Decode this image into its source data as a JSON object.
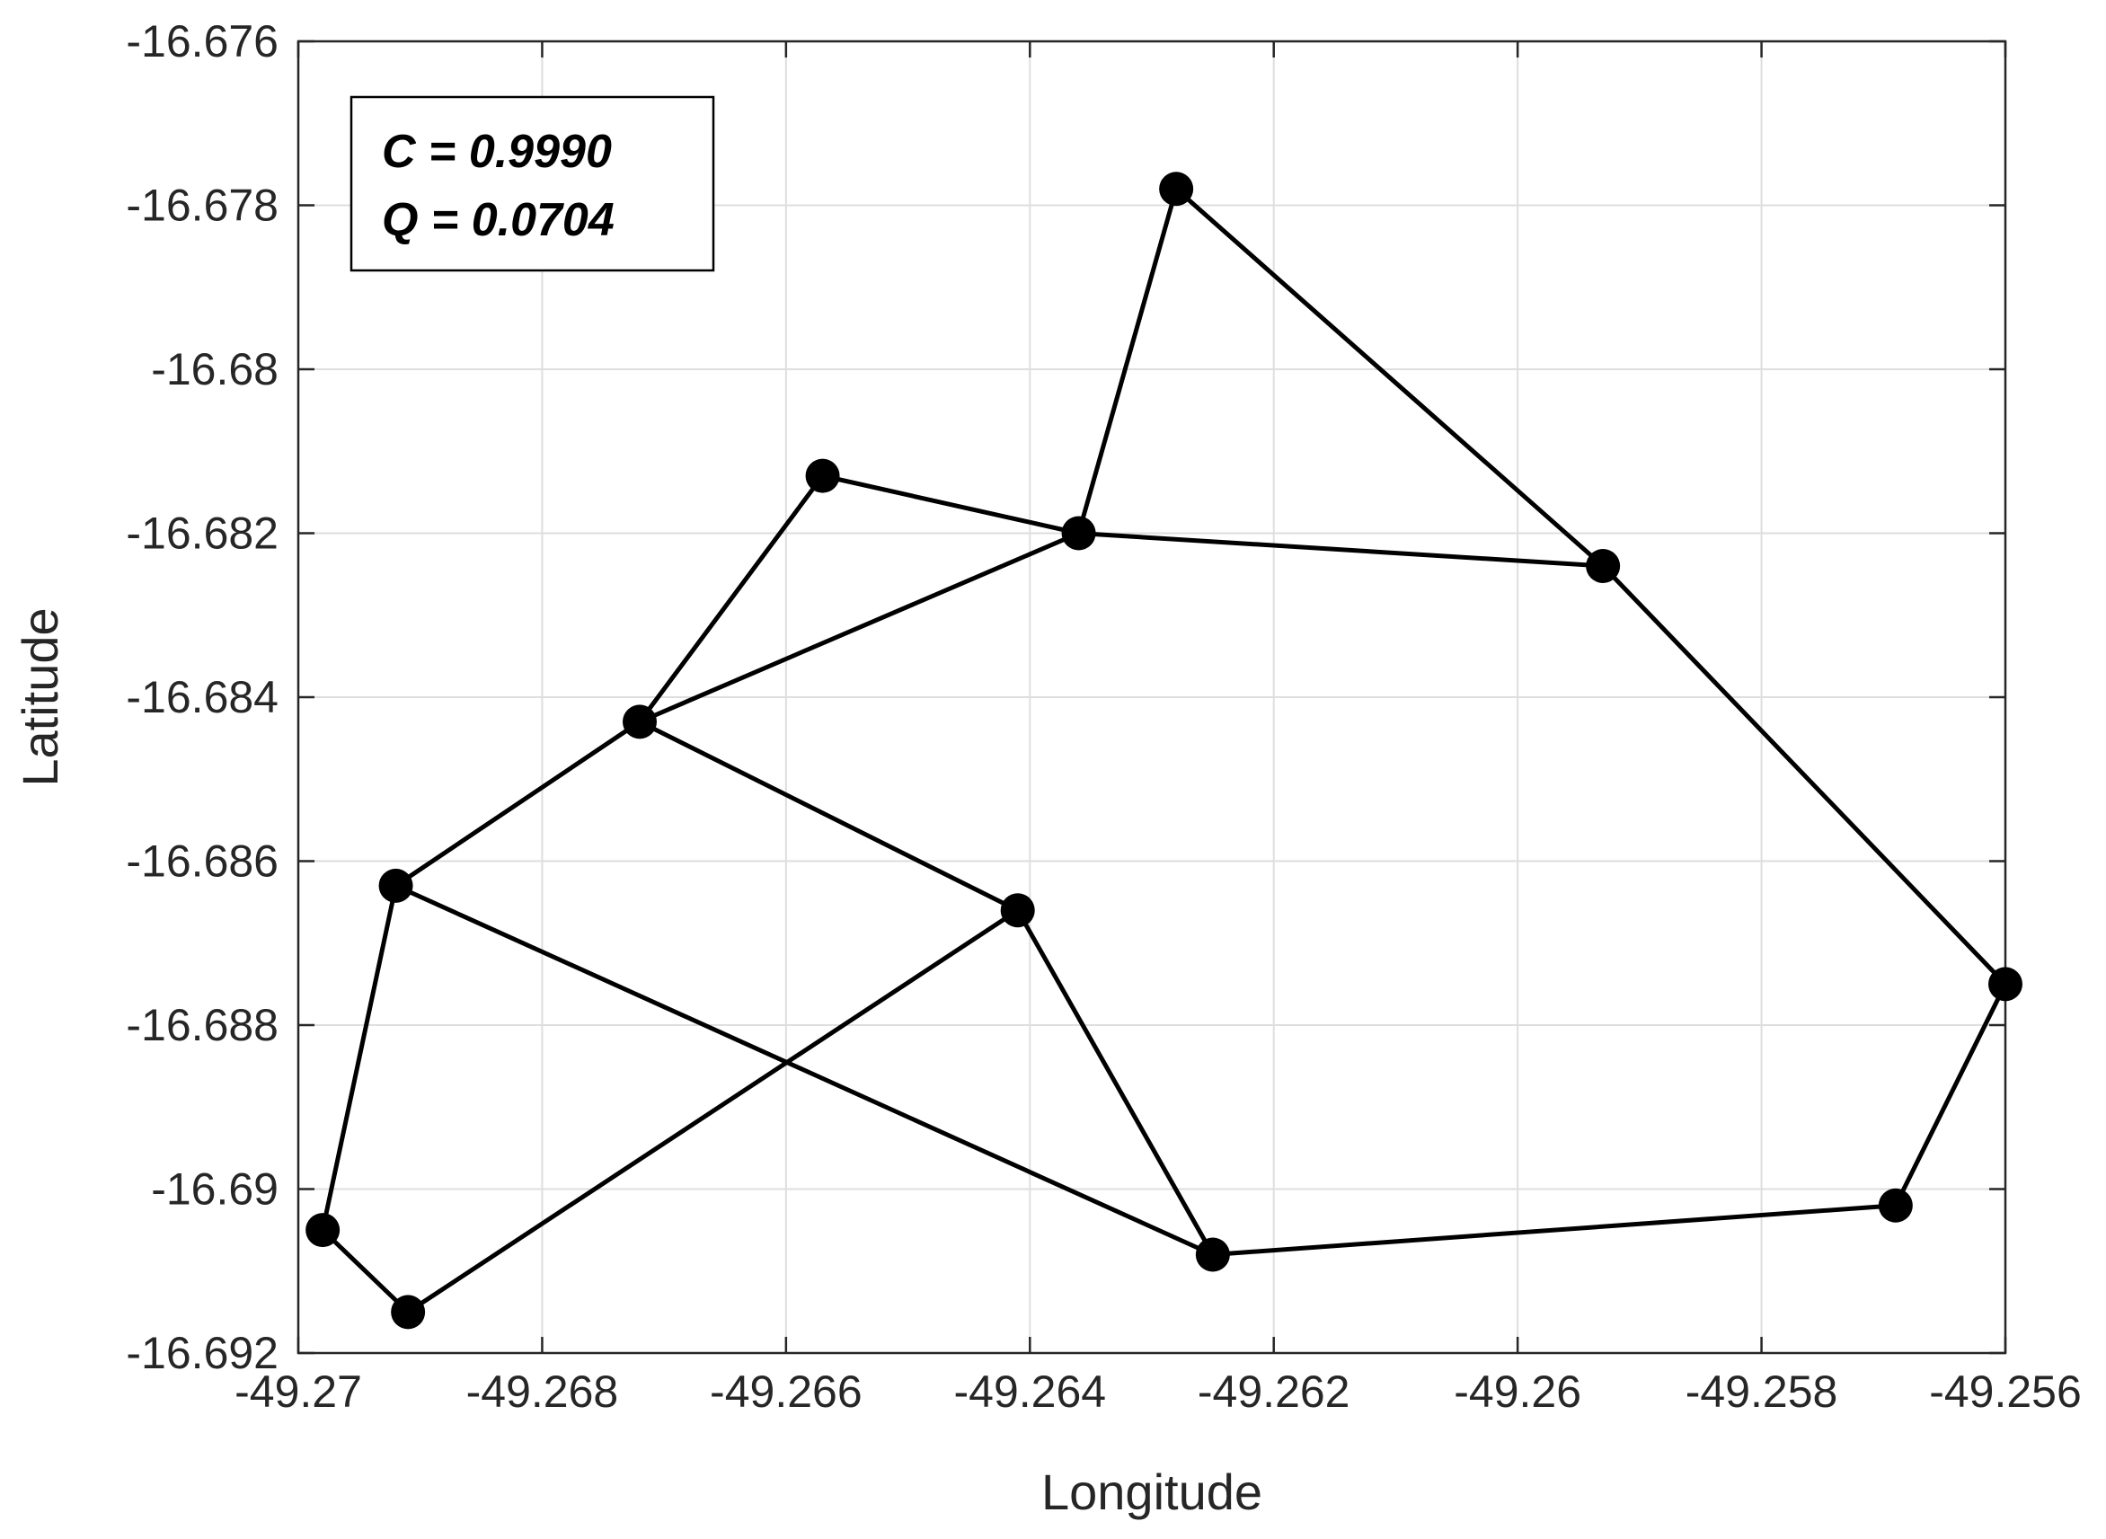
{
  "chart_data": {
    "type": "scatter",
    "xlabel": "Longitude",
    "ylabel": "Latitude",
    "xlim": [
      -49.27,
      -49.256
    ],
    "ylim": [
      -16.692,
      -16.676
    ],
    "xticks": [
      "-49.27",
      "-49.268",
      "-49.266",
      "-49.264",
      "-49.262",
      "-49.26",
      "-49.258",
      "-49.256"
    ],
    "yticks": [
      "-16.676",
      "-16.678",
      "-16.68",
      "-16.682",
      "-16.684",
      "-16.686",
      "-16.688",
      "-16.69",
      "-16.692"
    ],
    "grid": true,
    "annotation": {
      "line1": "C = 0.9990",
      "line2": "Q = 0.0704"
    },
    "nodes": [
      {
        "x": -49.2628,
        "y": -16.6778
      },
      {
        "x": -49.2636,
        "y": -16.682
      },
      {
        "x": -49.2657,
        "y": -16.6813
      },
      {
        "x": -49.2593,
        "y": -16.6824
      },
      {
        "x": -49.2672,
        "y": -16.6843
      },
      {
        "x": -49.2692,
        "y": -16.6863
      },
      {
        "x": -49.2641,
        "y": -16.6866
      },
      {
        "x": -49.256,
        "y": -16.6875
      },
      {
        "x": -49.2569,
        "y": -16.6902
      },
      {
        "x": -49.2625,
        "y": -16.6908
      },
      {
        "x": -49.2698,
        "y": -16.6905
      },
      {
        "x": -49.2691,
        "y": -16.6915
      }
    ],
    "edges": [
      [
        0,
        1
      ],
      [
        0,
        3
      ],
      [
        1,
        2
      ],
      [
        1,
        3
      ],
      [
        2,
        4
      ],
      [
        1,
        4
      ],
      [
        4,
        5
      ],
      [
        4,
        6
      ],
      [
        5,
        10
      ],
      [
        5,
        9
      ],
      [
        6,
        11
      ],
      [
        6,
        9
      ],
      [
        10,
        11
      ],
      [
        9,
        8
      ],
      [
        8,
        7
      ],
      [
        3,
        7
      ]
    ],
    "colors": {
      "line": "#000000",
      "grid": "#dedede",
      "axis": "#262626"
    }
  }
}
